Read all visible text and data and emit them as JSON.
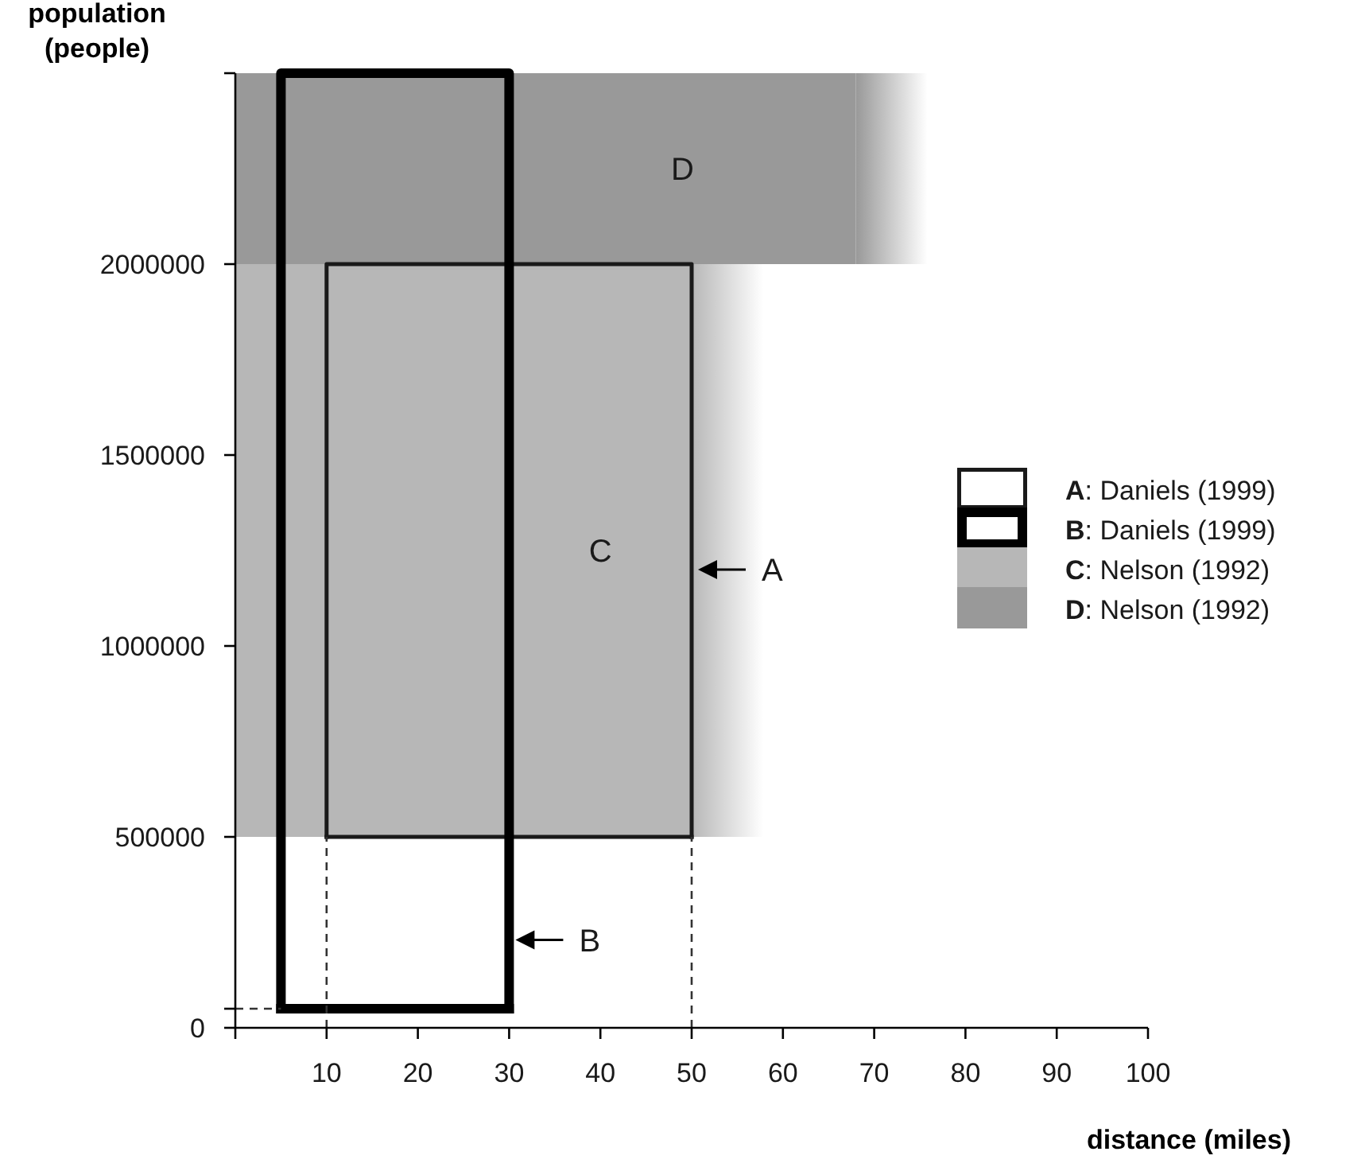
{
  "chart_data": {
    "type": "line",
    "xlabel": "distance (miles)",
    "ylabel": "population (people)",
    "xlim": [
      0,
      100
    ],
    "xticks": [
      {
        "value": 0,
        "label": null
      },
      10,
      20,
      30,
      40,
      50,
      60,
      70,
      80,
      90,
      100
    ],
    "ylim": [
      0,
      2500000
    ],
    "yticks": [
      0,
      {
        "value": 50000,
        "label": null
      },
      500000,
      1000000,
      1500000,
      2000000,
      {
        "value": 2500000,
        "label": null
      }
    ],
    "legend": "right",
    "series": [
      {
        "name": "D: Nelson (1992)",
        "type": "area",
        "color": "#999999",
        "x": [
          0,
          68
        ],
        "values": [
          null,
          null
        ],
        "upper": [
          2500000,
          2500000
        ],
        "lower": [
          2000000,
          2000000
        ]
      },
      {
        "name": "C: Nelson (1992)",
        "type": "area",
        "color": "#b7b7b7",
        "x": [
          0,
          50
        ],
        "values": [
          null,
          null
        ],
        "upper": [
          2000000,
          2000000
        ],
        "lower": [
          500000,
          500000
        ]
      },
      {
        "name": "A: Daniels (1999)",
        "color": "#1a1a1a",
        "x": [
          10,
          10,
          50,
          50
        ],
        "values": [
          500000,
          2000000,
          2000000,
          500000
        ]
      },
      {
        "color": "#1a1a1a",
        "x": [
          10,
          50
        ],
        "values": [
          500000,
          500000
        ]
      },
      {
        "name": "B: Daniels (1999)",
        "color": "#000000",
        "x": [
          5,
          5,
          30,
          30
        ],
        "values": [
          50000,
          2500000,
          2500000,
          50000
        ]
      },
      {
        "color": "#000000",
        "x": [
          5,
          30
        ],
        "values": [
          50000,
          50000
        ]
      },
      {
        "color": "#333333",
        "line_style": "dashed",
        "x": [
          10,
          10
        ],
        "values": [
          0,
          500000
        ]
      },
      {
        "color": "#333333",
        "line_style": "dashed",
        "x": [
          50,
          50
        ],
        "values": [
          0,
          500000
        ]
      },
      {
        "color": "#333333",
        "line_style": "dashed",
        "x": [
          0,
          5
        ],
        "values": [
          50000,
          50000
        ]
      }
    ],
    "annotations": [
      "D",
      "C",
      {
        "text": "A",
        "x": 50,
        "y": 1200000
      },
      {
        "text": "B",
        "x": 30,
        "y": 230000
      }
    ]
  }
}
